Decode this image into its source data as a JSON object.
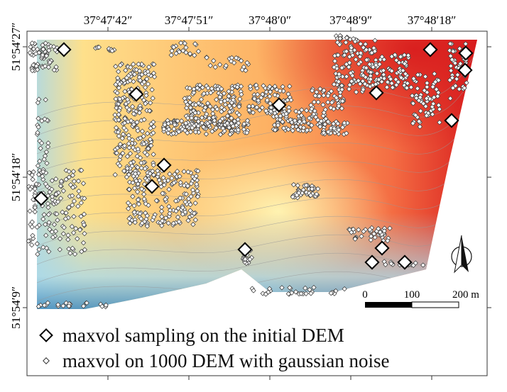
{
  "map": {
    "lon_ticks_top": [
      "37°47′42″",
      "37°47′51″",
      "37°48′0″",
      "37°48′9″",
      "37°48′18″"
    ],
    "lat_ticks_left": [
      "51°54′27″",
      "51°54′18″",
      "51°54′9″"
    ],
    "colors": {
      "high": "#d7191c",
      "mid_high": "#fdae61",
      "mid": "#ffffbf",
      "mid_low": "#abd9e9",
      "low": "#2c7bb6",
      "frame": "#333333",
      "contour": "#999999"
    },
    "scale_bar": {
      "labels": [
        "0",
        "100",
        "200 m"
      ]
    },
    "north_arrow_icon": "north-arrow-icon"
  },
  "legend": {
    "items": [
      {
        "label": "maxvol sampling on the initial DEM",
        "symbol": "large-diamond-icon"
      },
      {
        "label": "maxvol on 1000 DEM with gaussian noise",
        "symbol": "small-diamond-icon"
      }
    ]
  }
}
